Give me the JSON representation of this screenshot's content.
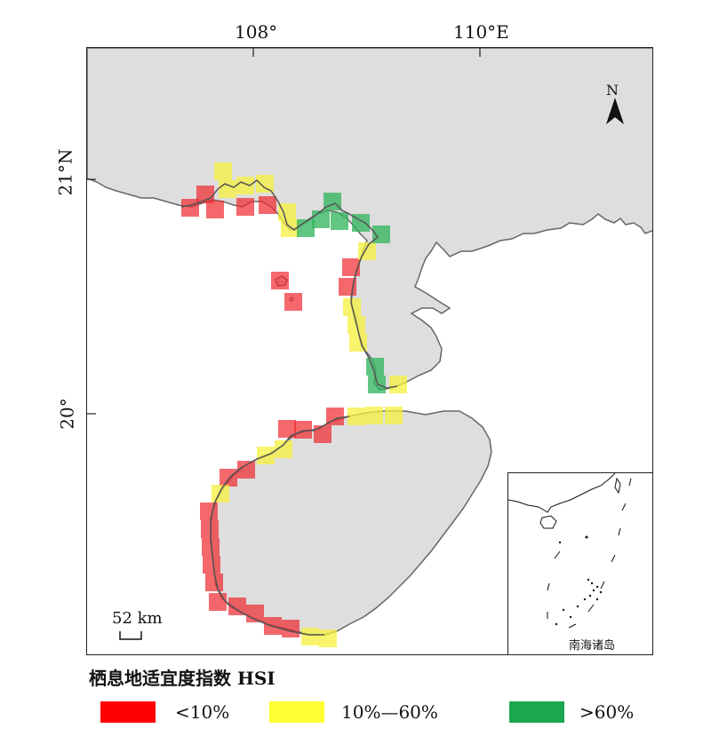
{
  "axes": {
    "lon_ticks": [
      "108°",
      "110°E"
    ],
    "lat_ticks": [
      "21°N",
      "20°"
    ]
  },
  "north_label": "N",
  "scale_bar": {
    "label": "52 km"
  },
  "inset": {
    "label": "南海诸岛"
  },
  "legend": {
    "title": "栖息地适宜度指数 HSI",
    "items": [
      {
        "label": "<10%",
        "color": "#ff0000"
      },
      {
        "label": "10%—60%",
        "color": "#ffff33"
      },
      {
        "label": ">60%",
        "color": "#1aa84f"
      }
    ]
  },
  "colors": {
    "land": "#dedede",
    "coast": "#666666",
    "low": "#f0282d",
    "mid": "#f5f03c",
    "high": "#2db35a"
  }
}
